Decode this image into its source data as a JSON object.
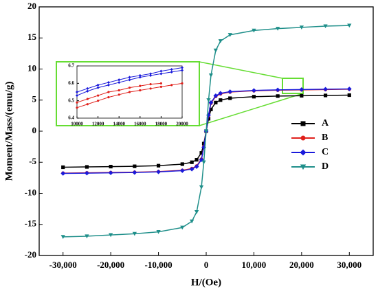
{
  "chart_data": [
    {
      "type": "line",
      "x_label": "H/(Oe)",
      "y_label": "Moment/Mass/(emu/g)",
      "x": [
        -30000,
        -25000,
        -20000,
        -15000,
        -10000,
        -5000,
        -3000,
        -2000,
        -1000,
        -500,
        0,
        500,
        1000,
        2000,
        3000,
        5000,
        10000,
        15000,
        20000,
        25000,
        30000
      ],
      "series": [
        {
          "name": "A",
          "color": "#000000",
          "marker": "square",
          "values": [
            -5.8,
            -5.75,
            -5.7,
            -5.65,
            -5.55,
            -5.3,
            -5.0,
            -4.6,
            -3.5,
            -2.0,
            0,
            2.0,
            3.5,
            4.6,
            5.0,
            5.3,
            5.55,
            5.65,
            5.7,
            5.75,
            5.8
          ]
        },
        {
          "name": "B",
          "color": "#e0201b",
          "marker": "circle",
          "values": [
            -6.75,
            -6.7,
            -6.65,
            -6.6,
            -6.5,
            -6.3,
            -6.0,
            -5.6,
            -4.5,
            -2.5,
            0,
            2.5,
            4.5,
            5.6,
            6.0,
            6.3,
            6.5,
            6.6,
            6.65,
            6.7,
            6.75
          ]
        },
        {
          "name": "C",
          "color": "#1a1adb",
          "marker": "diamond",
          "values": [
            -6.8,
            -6.75,
            -6.7,
            -6.65,
            -6.55,
            -6.35,
            -6.1,
            -5.7,
            -4.6,
            -2.6,
            0,
            2.6,
            4.6,
            5.7,
            6.1,
            6.35,
            6.55,
            6.65,
            6.7,
            6.75,
            6.8
          ]
        },
        {
          "name": "D",
          "color": "#1f8f8a",
          "marker": "triangle-down",
          "values": [
            -17.0,
            -16.9,
            -16.7,
            -16.5,
            -16.2,
            -15.5,
            -14.5,
            -13.0,
            -9.0,
            -5.0,
            0,
            5.0,
            9.0,
            13.0,
            14.5,
            15.5,
            16.2,
            16.5,
            16.7,
            16.9,
            17.0
          ]
        }
      ],
      "xlim": [
        -35000,
        35000
      ],
      "ylim": [
        -20,
        20
      ],
      "xticks": [
        {
          "value": -30000,
          "label": "-30,000"
        },
        {
          "value": -20000,
          "label": "-20,000"
        },
        {
          "value": -10000,
          "label": "-10,000"
        },
        0,
        {
          "value": 10000,
          "label": "10,000"
        },
        {
          "value": 20000,
          "label": "20,000"
        },
        {
          "value": 30000,
          "label": "30,000"
        }
      ],
      "yticks": [
        -20,
        -15,
        -10,
        -5,
        0,
        5,
        10,
        15,
        20
      ],
      "legend": "right"
    },
    {
      "type": "line",
      "x": [
        10000,
        11000,
        12000,
        13000,
        14000,
        15000,
        16000,
        17000,
        18000,
        19000,
        20000
      ],
      "series": [
        {
          "color": "#1a1adb",
          "marker": "diamond",
          "values": [
            6.55,
            6.57,
            6.59,
            6.605,
            6.62,
            6.635,
            6.645,
            6.655,
            6.67,
            6.68,
            6.69
          ]
        },
        {
          "color": "#1a1adb",
          "marker": "diamond",
          "values": [
            6.53,
            6.555,
            6.575,
            6.59,
            6.605,
            6.62,
            6.635,
            6.645,
            6.655,
            6.665,
            6.675
          ]
        },
        {
          "color": "#e0201b",
          "marker": "circle",
          "values": [
            6.49,
            6.51,
            6.53,
            6.55,
            6.56,
            6.575,
            6.585,
            6.595,
            6.6,
            null,
            null
          ]
        },
        {
          "color": "#e0201b",
          "marker": "circle",
          "values": [
            6.46,
            6.48,
            6.5,
            6.52,
            6.535,
            6.55,
            6.56,
            6.57,
            6.58,
            6.59,
            6.6
          ]
        }
      ],
      "xlim": [
        10000,
        20000
      ],
      "ylim": [
        6.4,
        6.7
      ],
      "xticks": [
        10000,
        12000,
        14000,
        16000,
        18000,
        20000
      ],
      "yticks": [
        6.4,
        6.5,
        6.6,
        6.7
      ]
    }
  ]
}
